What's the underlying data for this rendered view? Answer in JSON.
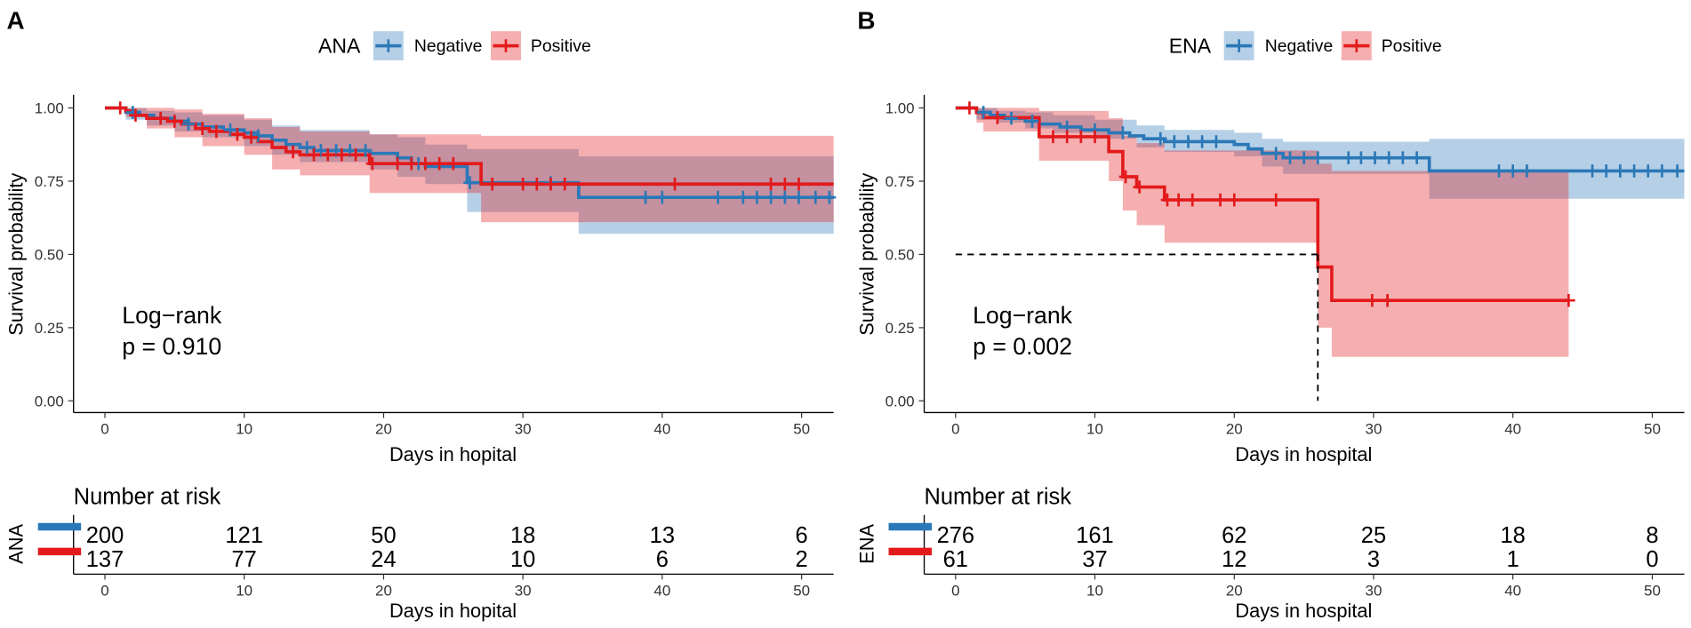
{
  "chart_data": [
    {
      "type": "line",
      "panel": "A",
      "strata_variable": "ANA",
      "xlabel": "Days in hopital",
      "ylabel": "Survival probability",
      "xlim": [
        -2.25,
        52.3
      ],
      "ylim": [
        -0.04,
        1.045
      ],
      "grid": false,
      "xticks": [
        0,
        10,
        20,
        30,
        40,
        50
      ],
      "xtick_labels": [
        "0",
        "10",
        "20",
        "30",
        "40",
        "50"
      ],
      "yticks": [
        0,
        0.25,
        0.5,
        0.75,
        1.0
      ],
      "ytick_labels": [
        "0.00",
        "0.25",
        "0.50",
        "0.75",
        "1.00"
      ],
      "annotation": {
        "line1": "Log−rank",
        "line2": "p = 0.910"
      },
      "median_line": null,
      "risk_table": {
        "title": "Number at risk",
        "times": [
          0,
          10,
          20,
          30,
          40,
          50
        ]
      },
      "series": [
        {
          "name": "Negative",
          "color": "#2A78B8",
          "end": 52.3,
          "steps": [
            [
              0,
              1.0
            ],
            [
              1.5,
              0.985
            ],
            [
              2.5,
              0.975
            ],
            [
              3.5,
              0.965
            ],
            [
              5,
              0.955
            ],
            [
              6,
              0.945
            ],
            [
              7,
              0.935
            ],
            [
              8.5,
              0.925
            ],
            [
              10,
              0.915
            ],
            [
              11,
              0.905
            ],
            [
              12,
              0.89
            ],
            [
              13,
              0.875
            ],
            [
              14,
              0.865
            ],
            [
              15,
              0.855
            ],
            [
              19,
              0.845
            ],
            [
              21,
              0.83
            ],
            [
              22,
              0.81
            ],
            [
              23,
              0.8
            ],
            [
              26,
              0.745
            ],
            [
              34,
              0.695
            ]
          ],
          "censored": [
            2,
            4,
            6,
            9,
            11,
            14.5,
            15.5,
            16.6,
            17.6,
            18.7,
            22.5,
            26.2,
            32,
            38.8,
            40,
            44,
            45.8,
            46.8,
            47.8,
            48.8,
            49.8,
            51,
            52
          ],
          "ci": [
            [
              0,
              1,
              1
            ],
            [
              1.5,
              0.96,
              1.0
            ],
            [
              3,
              0.94,
              0.99
            ],
            [
              5,
              0.92,
              0.985
            ],
            [
              7,
              0.9,
              0.975
            ],
            [
              10,
              0.87,
              0.96
            ],
            [
              12,
              0.84,
              0.94
            ],
            [
              14,
              0.815,
              0.925
            ],
            [
              19,
              0.79,
              0.91
            ],
            [
              21,
              0.765,
              0.9
            ],
            [
              23,
              0.74,
              0.875
            ],
            [
              26,
              0.645,
              0.86
            ],
            [
              34,
              0.57,
              0.835
            ]
          ],
          "at_risk": [
            200,
            121,
            50,
            18,
            13,
            6
          ]
        },
        {
          "name": "Positive",
          "color": "#E31A1C",
          "end": 52.3,
          "steps": [
            [
              0,
              1.0
            ],
            [
              1.5,
              0.99
            ],
            [
              2,
              0.975
            ],
            [
              3,
              0.965
            ],
            [
              4.5,
              0.955
            ],
            [
              5.5,
              0.945
            ],
            [
              6.5,
              0.93
            ],
            [
              7.5,
              0.92
            ],
            [
              9,
              0.91
            ],
            [
              10,
              0.9
            ],
            [
              11,
              0.885
            ],
            [
              12,
              0.865
            ],
            [
              13,
              0.85
            ],
            [
              14,
              0.84
            ],
            [
              19,
              0.81
            ],
            [
              27,
              0.74
            ]
          ],
          "censored": [
            1.1,
            2.2,
            4,
            5,
            7,
            8,
            9.5,
            10.5,
            13.5,
            15,
            16,
            17,
            18,
            19.2,
            21,
            22,
            23,
            24,
            25,
            27.8,
            30,
            31,
            32,
            33,
            40.9,
            47.8,
            48.8,
            49.8
          ],
          "ci": [
            [
              0,
              1,
              1
            ],
            [
              1.5,
              0.97,
              1.0
            ],
            [
              3,
              0.93,
              1.0
            ],
            [
              5,
              0.9,
              0.995
            ],
            [
              7,
              0.87,
              0.98
            ],
            [
              10,
              0.84,
              0.965
            ],
            [
              12,
              0.79,
              0.935
            ],
            [
              14,
              0.77,
              0.92
            ],
            [
              19,
              0.71,
              0.91
            ],
            [
              27,
              0.61,
              0.905
            ]
          ],
          "at_risk": [
            137,
            77,
            24,
            10,
            6,
            2
          ]
        }
      ]
    },
    {
      "type": "line",
      "panel": "B",
      "strata_variable": "ENA",
      "xlabel": "Days in hospital",
      "ylabel": "Survival probability",
      "xlim": [
        -2.25,
        52.3
      ],
      "ylim": [
        -0.04,
        1.045
      ],
      "grid": false,
      "xticks": [
        0,
        10,
        20,
        30,
        40,
        50
      ],
      "xtick_labels": [
        "0",
        "10",
        "20",
        "30",
        "40",
        "50"
      ],
      "yticks": [
        0,
        0.25,
        0.5,
        0.75,
        1.0
      ],
      "ytick_labels": [
        "0.00",
        "0.25",
        "0.50",
        "0.75",
        "1.00"
      ],
      "annotation": {
        "line1": "Log−rank",
        "line2": "p = 0.002"
      },
      "median_line": {
        "survival": 0.5,
        "day": 26
      },
      "risk_table": {
        "title": "Number at risk",
        "times": [
          0,
          10,
          20,
          30,
          40,
          50
        ]
      },
      "series": [
        {
          "name": "Negative",
          "color": "#2A78B8",
          "end": 52.3,
          "steps": [
            [
              0,
              1.0
            ],
            [
              1.5,
              0.985
            ],
            [
              2.5,
              0.975
            ],
            [
              3.5,
              0.965
            ],
            [
              5,
              0.955
            ],
            [
              6,
              0.945
            ],
            [
              7.5,
              0.935
            ],
            [
              9,
              0.925
            ],
            [
              11,
              0.915
            ],
            [
              12.5,
              0.905
            ],
            [
              13.5,
              0.895
            ],
            [
              15,
              0.885
            ],
            [
              20,
              0.875
            ],
            [
              21,
              0.86
            ],
            [
              22,
              0.845
            ],
            [
              23.5,
              0.83
            ],
            [
              34,
              0.785
            ]
          ],
          "censored": [
            2,
            4,
            5.5,
            8,
            10,
            12,
            14.7,
            15.7,
            16.7,
            17.7,
            18.7,
            23,
            24,
            25,
            26,
            28.2,
            29.1,
            30.1,
            31.1,
            32.1,
            33.1,
            39,
            40,
            41,
            45.7,
            46.7,
            47.7,
            48.7,
            49.7,
            50.7,
            51.8
          ],
          "ci": [
            [
              0,
              1,
              1
            ],
            [
              1.5,
              0.96,
              1.0
            ],
            [
              3,
              0.95,
              0.99
            ],
            [
              5,
              0.93,
              0.985
            ],
            [
              7,
              0.915,
              0.975
            ],
            [
              10,
              0.895,
              0.96
            ],
            [
              13,
              0.865,
              0.94
            ],
            [
              15,
              0.85,
              0.925
            ],
            [
              20,
              0.835,
              0.915
            ],
            [
              22,
              0.8,
              0.895
            ],
            [
              23.5,
              0.775,
              0.885
            ],
            [
              34,
              0.69,
              0.895
            ]
          ],
          "at_risk": [
            276,
            161,
            62,
            25,
            18,
            8
          ]
        },
        {
          "name": "Positive",
          "color": "#E31A1C",
          "end": 44,
          "steps": [
            [
              0,
              1.0
            ],
            [
              1.5,
              0.984
            ],
            [
              2,
              0.967
            ],
            [
              6,
              0.902
            ],
            [
              11,
              0.851
            ],
            [
              12,
              0.765
            ],
            [
              13,
              0.73
            ],
            [
              15,
              0.686
            ],
            [
              26,
              0.457
            ],
            [
              27,
              0.343
            ]
          ],
          "censored": [
            1,
            3,
            7,
            8,
            9,
            10,
            12.2,
            13.2,
            15.2,
            16,
            17,
            19,
            20,
            23,
            29.9,
            31,
            44
          ],
          "ci": [
            [
              0,
              1,
              1
            ],
            [
              1.5,
              0.95,
              1.0
            ],
            [
              2,
              0.92,
              1.0
            ],
            [
              6,
              0.82,
              0.99
            ],
            [
              11,
              0.75,
              0.965
            ],
            [
              12,
              0.65,
              0.905
            ],
            [
              13,
              0.6,
              0.88
            ],
            [
              15,
              0.54,
              0.855
            ],
            [
              26,
              0.25,
              0.81
            ],
            [
              27,
              0.15,
              0.785
            ]
          ],
          "at_risk": [
            61,
            37,
            12,
            3,
            1,
            0
          ]
        }
      ]
    }
  ]
}
